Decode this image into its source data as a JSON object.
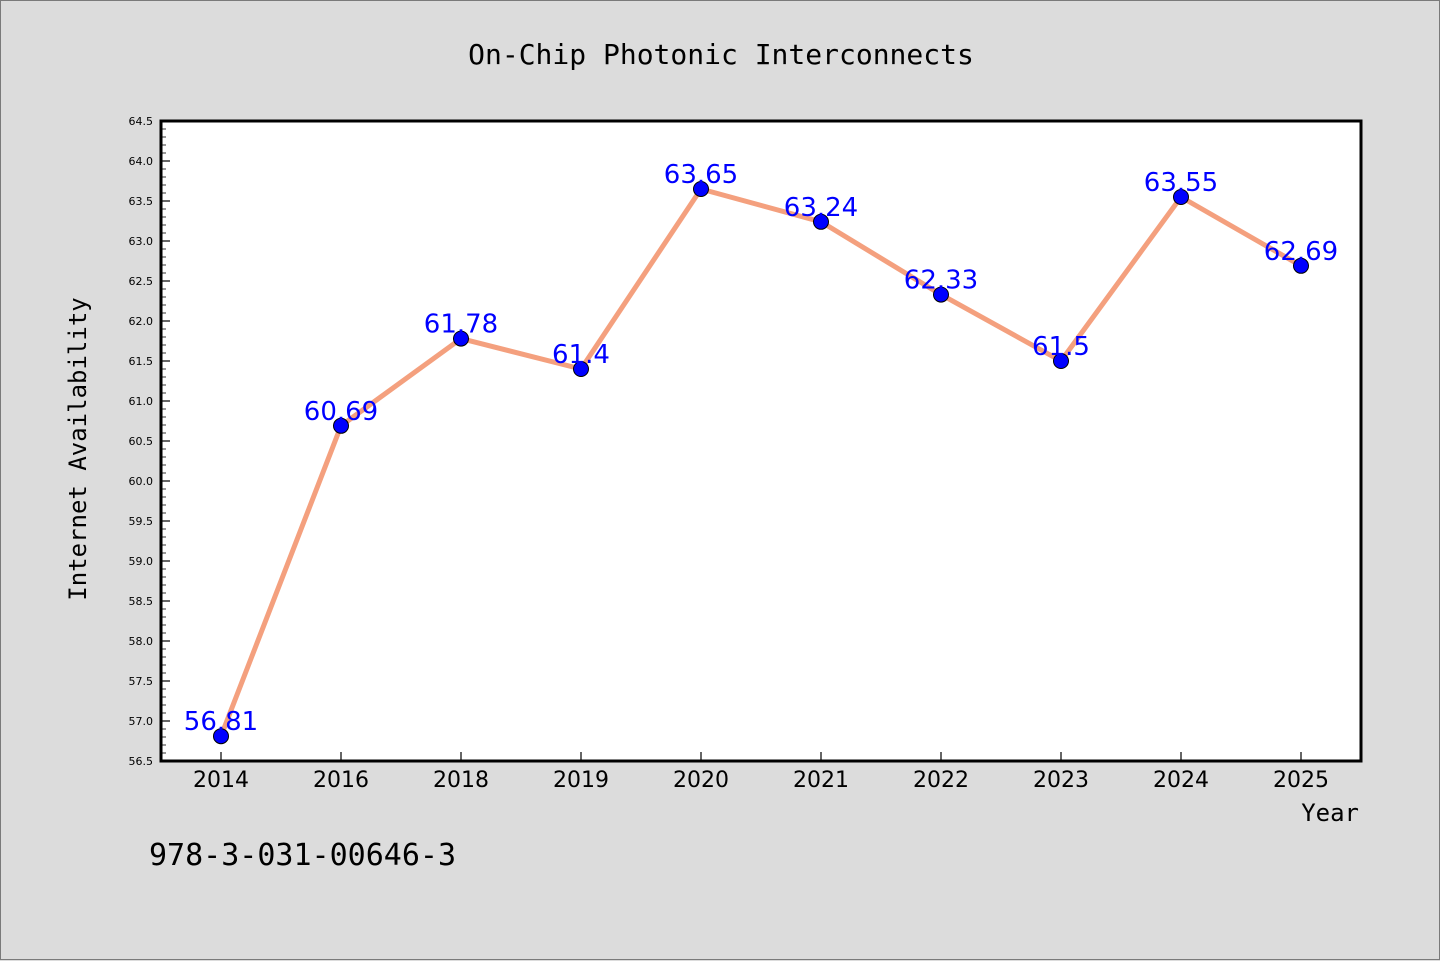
{
  "chart_data": {
    "type": "line",
    "title": "On-Chip Photonic Interconnects",
    "xlabel": "Year",
    "ylabel": "Internet Availability",
    "categories": [
      "2014",
      "2016",
      "2018",
      "2019",
      "2020",
      "2021",
      "2022",
      "2023",
      "2024",
      "2025"
    ],
    "series": [
      {
        "values": [
          56.81,
          60.69,
          61.78,
          61.4,
          63.65,
          63.24,
          62.33,
          61.5,
          63.55,
          62.69
        ],
        "data_labels": [
          "56.81",
          "60.69",
          "61.78",
          "61.4",
          "63.65",
          "63.24",
          "62.33",
          "61.5",
          "63.55",
          "62.69"
        ]
      }
    ],
    "ylim": [
      56.5,
      64.5
    ],
    "y_ticks": [
      "56.5",
      "57.0",
      "57.5",
      "58.0",
      "58.5",
      "59.0",
      "59.5",
      "60.0",
      "60.5",
      "61.0",
      "61.5",
      "62.0",
      "62.5",
      "63.0",
      "63.5",
      "64.0",
      "64.5"
    ],
    "grid": false,
    "legend": "none",
    "colors": {
      "line": "#f4a07e",
      "marker": "#0000ff",
      "data_label": "#0000ff",
      "background": "#dcdcdc",
      "plot_area": "#ffffff"
    },
    "annotation": "978-3-031-00646-3"
  }
}
